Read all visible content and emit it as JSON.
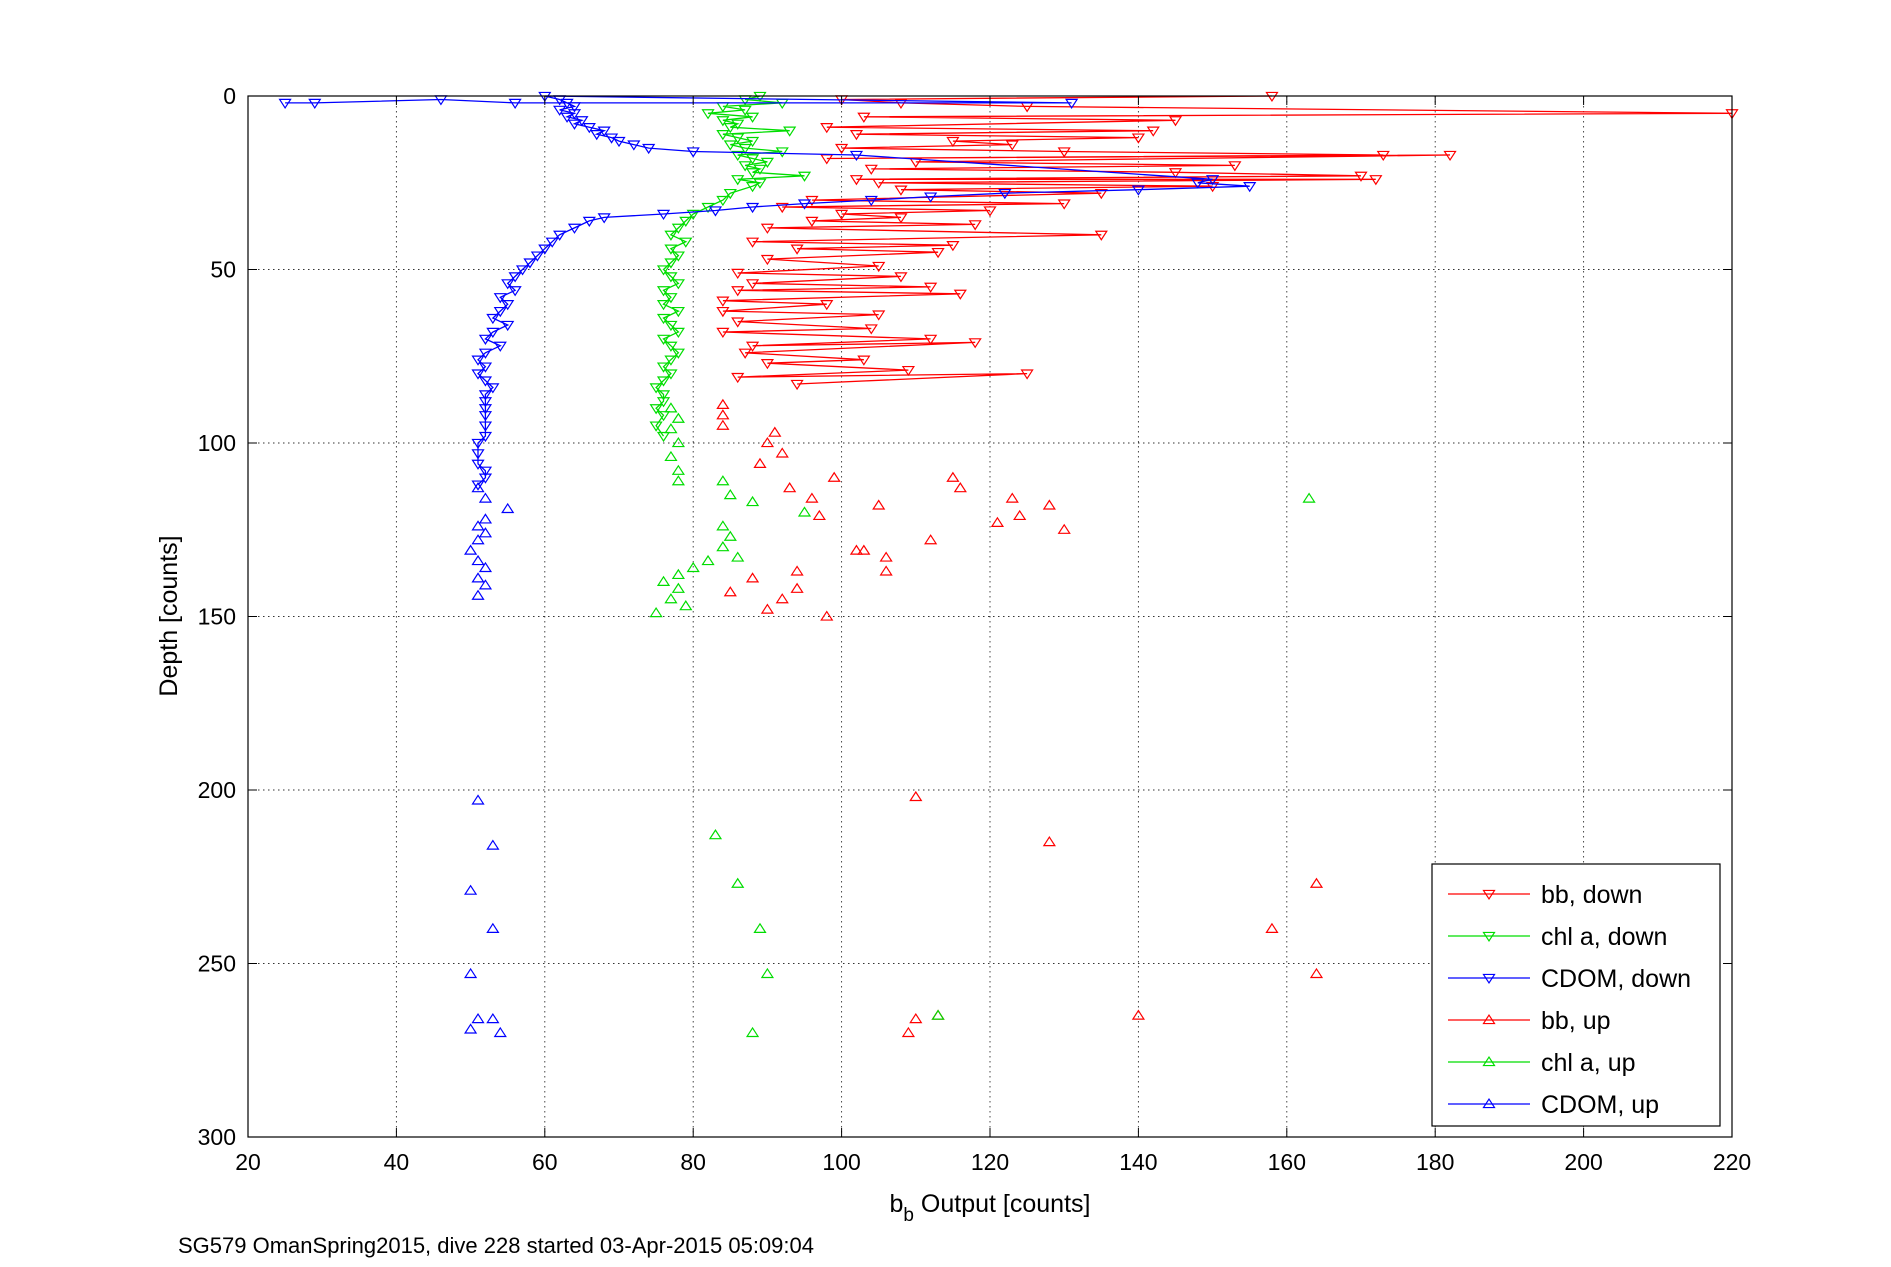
{
  "caption": "SG579 OmanSpring2015, dive 228 started 03-Apr-2015 05:09:04",
  "chart_data": {
    "type": "scatter",
    "xlabel_main": "b",
    "xlabel_sub": "b",
    "xlabel_rest": " Output [counts]",
    "ylabel": "Depth [counts]",
    "xlim": [
      20,
      220
    ],
    "ylim": [
      0,
      300
    ],
    "y_reversed": true,
    "grid": true,
    "legend_placement": "bottom-right",
    "x_ticks": [
      20,
      40,
      60,
      80,
      100,
      120,
      140,
      160,
      180,
      200,
      220
    ],
    "y_ticks": [
      0,
      50,
      100,
      150,
      200,
      250,
      300
    ],
    "series": [
      {
        "name": "bb, down",
        "color": "#ff0000",
        "marker": "triangle-down",
        "connected": true,
        "points": [
          [
            158,
            0
          ],
          [
            100,
            1
          ],
          [
            108,
            2
          ],
          [
            125,
            3
          ],
          [
            220,
            5
          ],
          [
            103,
            6
          ],
          [
            145,
            7
          ],
          [
            98,
            9
          ],
          [
            142,
            10
          ],
          [
            102,
            11
          ],
          [
            140,
            12
          ],
          [
            115,
            13
          ],
          [
            123,
            14
          ],
          [
            100,
            15
          ],
          [
            130,
            16
          ],
          [
            173,
            17
          ],
          [
            98,
            18
          ],
          [
            182,
            17
          ],
          [
            110,
            19
          ],
          [
            153,
            20
          ],
          [
            104,
            21
          ],
          [
            145,
            22
          ],
          [
            170,
            23
          ],
          [
            102,
            24
          ],
          [
            172,
            24
          ],
          [
            105,
            25
          ],
          [
            150,
            26
          ],
          [
            108,
            27
          ],
          [
            135,
            28
          ],
          [
            96,
            30
          ],
          [
            130,
            31
          ],
          [
            92,
            32
          ],
          [
            120,
            33
          ],
          [
            100,
            34
          ],
          [
            108,
            35
          ],
          [
            96,
            36
          ],
          [
            118,
            37
          ],
          [
            90,
            38
          ],
          [
            135,
            40
          ],
          [
            88,
            42
          ],
          [
            115,
            43
          ],
          [
            94,
            44
          ],
          [
            113,
            45
          ],
          [
            90,
            47
          ],
          [
            105,
            49
          ],
          [
            86,
            51
          ],
          [
            108,
            52
          ],
          [
            88,
            54
          ],
          [
            112,
            55
          ],
          [
            86,
            56
          ],
          [
            116,
            57
          ],
          [
            84,
            59
          ],
          [
            98,
            60
          ],
          [
            84,
            62
          ],
          [
            105,
            63
          ],
          [
            86,
            65
          ],
          [
            104,
            67
          ],
          [
            84,
            68
          ],
          [
            112,
            70
          ],
          [
            88,
            72
          ],
          [
            118,
            71
          ],
          [
            87,
            74
          ],
          [
            103,
            76
          ],
          [
            90,
            77
          ],
          [
            109,
            79
          ],
          [
            86,
            81
          ],
          [
            125,
            80
          ],
          [
            94,
            83
          ]
        ]
      },
      {
        "name": "chl a, down",
        "color": "#00dd00",
        "marker": "triangle-down",
        "connected": true,
        "points": [
          [
            89,
            0
          ],
          [
            87,
            1
          ],
          [
            92,
            2
          ],
          [
            84,
            3
          ],
          [
            87,
            4
          ],
          [
            82,
            5
          ],
          [
            88,
            6
          ],
          [
            84,
            7
          ],
          [
            86,
            8
          ],
          [
            85,
            9
          ],
          [
            93,
            10
          ],
          [
            84,
            11
          ],
          [
            86,
            12
          ],
          [
            88,
            13
          ],
          [
            85,
            14
          ],
          [
            87,
            15
          ],
          [
            92,
            16
          ],
          [
            86,
            17
          ],
          [
            88,
            18
          ],
          [
            90,
            19
          ],
          [
            87,
            20
          ],
          [
            89,
            21
          ],
          [
            88,
            22
          ],
          [
            95,
            23
          ],
          [
            86,
            24
          ],
          [
            89,
            25
          ],
          [
            88,
            26
          ],
          [
            85,
            28
          ],
          [
            84,
            30
          ],
          [
            82,
            32
          ],
          [
            80,
            34
          ],
          [
            79,
            36
          ],
          [
            78,
            38
          ],
          [
            77,
            40
          ],
          [
            79,
            42
          ],
          [
            77,
            44
          ],
          [
            78,
            46
          ],
          [
            77,
            48
          ],
          [
            76,
            50
          ],
          [
            77,
            52
          ],
          [
            78,
            54
          ],
          [
            76,
            56
          ],
          [
            77,
            58
          ],
          [
            76,
            60
          ],
          [
            78,
            62
          ],
          [
            76,
            64
          ],
          [
            77,
            66
          ],
          [
            78,
            68
          ],
          [
            76,
            70
          ],
          [
            77,
            72
          ],
          [
            78,
            74
          ],
          [
            77,
            76
          ],
          [
            76,
            78
          ],
          [
            77,
            80
          ],
          [
            76,
            82
          ],
          [
            75,
            84
          ],
          [
            76,
            86
          ],
          [
            76,
            88
          ],
          [
            75,
            90
          ],
          [
            76,
            92
          ],
          [
            75,
            95
          ],
          [
            76,
            98
          ]
        ]
      },
      {
        "name": "CDOM, down",
        "color": "#0000ff",
        "marker": "triangle-down",
        "connected": true,
        "points": [
          [
            25,
            2
          ],
          [
            29,
            2
          ],
          [
            46,
            1
          ],
          [
            56,
            2
          ],
          [
            131,
            2
          ],
          [
            60,
            0
          ],
          [
            62,
            1
          ],
          [
            63,
            2
          ],
          [
            64,
            3
          ],
          [
            62,
            4
          ],
          [
            64,
            5
          ],
          [
            63,
            6
          ],
          [
            65,
            7
          ],
          [
            64,
            8
          ],
          [
            66,
            9
          ],
          [
            68,
            10
          ],
          [
            67,
            11
          ],
          [
            69,
            12
          ],
          [
            70,
            13
          ],
          [
            72,
            14
          ],
          [
            74,
            15
          ],
          [
            80,
            16
          ],
          [
            102,
            17
          ],
          [
            150,
            24
          ],
          [
            148,
            25
          ],
          [
            155,
            26
          ],
          [
            140,
            27
          ],
          [
            122,
            28
          ],
          [
            112,
            29
          ],
          [
            104,
            30
          ],
          [
            95,
            31
          ],
          [
            88,
            32
          ],
          [
            83,
            33
          ],
          [
            76,
            34
          ],
          [
            68,
            35
          ],
          [
            66,
            36
          ],
          [
            64,
            38
          ],
          [
            62,
            40
          ],
          [
            61,
            42
          ],
          [
            60,
            44
          ],
          [
            59,
            46
          ],
          [
            58,
            48
          ],
          [
            57,
            50
          ],
          [
            56,
            52
          ],
          [
            55,
            54
          ],
          [
            56,
            56
          ],
          [
            54,
            58
          ],
          [
            55,
            60
          ],
          [
            54,
            62
          ],
          [
            53,
            64
          ],
          [
            55,
            66
          ],
          [
            53,
            68
          ],
          [
            52,
            70
          ],
          [
            54,
            72
          ],
          [
            52,
            74
          ],
          [
            51,
            76
          ],
          [
            52,
            78
          ],
          [
            51,
            80
          ],
          [
            52,
            82
          ],
          [
            53,
            84
          ],
          [
            52,
            86
          ],
          [
            52,
            88
          ],
          [
            52,
            90
          ],
          [
            52,
            92
          ],
          [
            52,
            95
          ],
          [
            52,
            98
          ],
          [
            51,
            100
          ],
          [
            51,
            103
          ],
          [
            51,
            106
          ],
          [
            52,
            108
          ],
          [
            52,
            110
          ],
          [
            51,
            112
          ]
        ]
      },
      {
        "name": "bb, up",
        "color": "#ff0000",
        "marker": "triangle-up",
        "connected": false,
        "points": [
          [
            84,
            89
          ],
          [
            84,
            92
          ],
          [
            84,
            95
          ],
          [
            91,
            97
          ],
          [
            90,
            100
          ],
          [
            92,
            103
          ],
          [
            89,
            106
          ],
          [
            99,
            110
          ],
          [
            93,
            113
          ],
          [
            96,
            116
          ],
          [
            105,
            118
          ],
          [
            97,
            121
          ],
          [
            115,
            110
          ],
          [
            116,
            113
          ],
          [
            123,
            116
          ],
          [
            128,
            118
          ],
          [
            124,
            121
          ],
          [
            130,
            125
          ],
          [
            112,
            128
          ],
          [
            121,
            123
          ],
          [
            103,
            131
          ],
          [
            106,
            133
          ],
          [
            106,
            137
          ],
          [
            94,
            137
          ],
          [
            88,
            139
          ],
          [
            94,
            142
          ],
          [
            85,
            143
          ],
          [
            92,
            145
          ],
          [
            90,
            148
          ],
          [
            98,
            150
          ],
          [
            102,
            131
          ],
          [
            140,
            265
          ],
          [
            164,
            227
          ],
          [
            164,
            253
          ],
          [
            158,
            240
          ],
          [
            110,
            202
          ],
          [
            128,
            215
          ],
          [
            113,
            265
          ],
          [
            109,
            270
          ],
          [
            110,
            266
          ]
        ]
      },
      {
        "name": "chl a, up",
        "color": "#00dd00",
        "marker": "triangle-up",
        "connected": false,
        "points": [
          [
            77,
            90
          ],
          [
            78,
            93
          ],
          [
            77,
            96
          ],
          [
            78,
            100
          ],
          [
            77,
            104
          ],
          [
            78,
            108
          ],
          [
            78,
            111
          ],
          [
            84,
            111
          ],
          [
            85,
            115
          ],
          [
            88,
            117
          ],
          [
            95,
            120
          ],
          [
            84,
            124
          ],
          [
            85,
            127
          ],
          [
            84,
            130
          ],
          [
            86,
            133
          ],
          [
            82,
            134
          ],
          [
            80,
            136
          ],
          [
            78,
            138
          ],
          [
            76,
            140
          ],
          [
            78,
            142
          ],
          [
            77,
            145
          ],
          [
            79,
            147
          ],
          [
            75,
            149
          ],
          [
            163,
            116
          ],
          [
            83,
            213
          ],
          [
            86,
            227
          ],
          [
            89,
            240
          ],
          [
            90,
            253
          ],
          [
            113,
            265
          ],
          [
            88,
            270
          ]
        ]
      },
      {
        "name": "CDOM, up",
        "color": "#0000ff",
        "marker": "triangle-up",
        "connected": false,
        "points": [
          [
            51,
            113
          ],
          [
            52,
            116
          ],
          [
            55,
            119
          ],
          [
            52,
            122
          ],
          [
            51,
            124
          ],
          [
            52,
            126
          ],
          [
            51,
            128
          ],
          [
            50,
            131
          ],
          [
            51,
            134
          ],
          [
            52,
            136
          ],
          [
            51,
            139
          ],
          [
            52,
            141
          ],
          [
            51,
            144
          ],
          [
            53,
            216
          ],
          [
            51,
            203
          ],
          [
            50,
            229
          ],
          [
            53,
            240
          ],
          [
            50,
            253
          ],
          [
            51,
            266
          ],
          [
            53,
            266
          ],
          [
            54,
            270
          ],
          [
            50,
            269
          ]
        ]
      }
    ]
  }
}
